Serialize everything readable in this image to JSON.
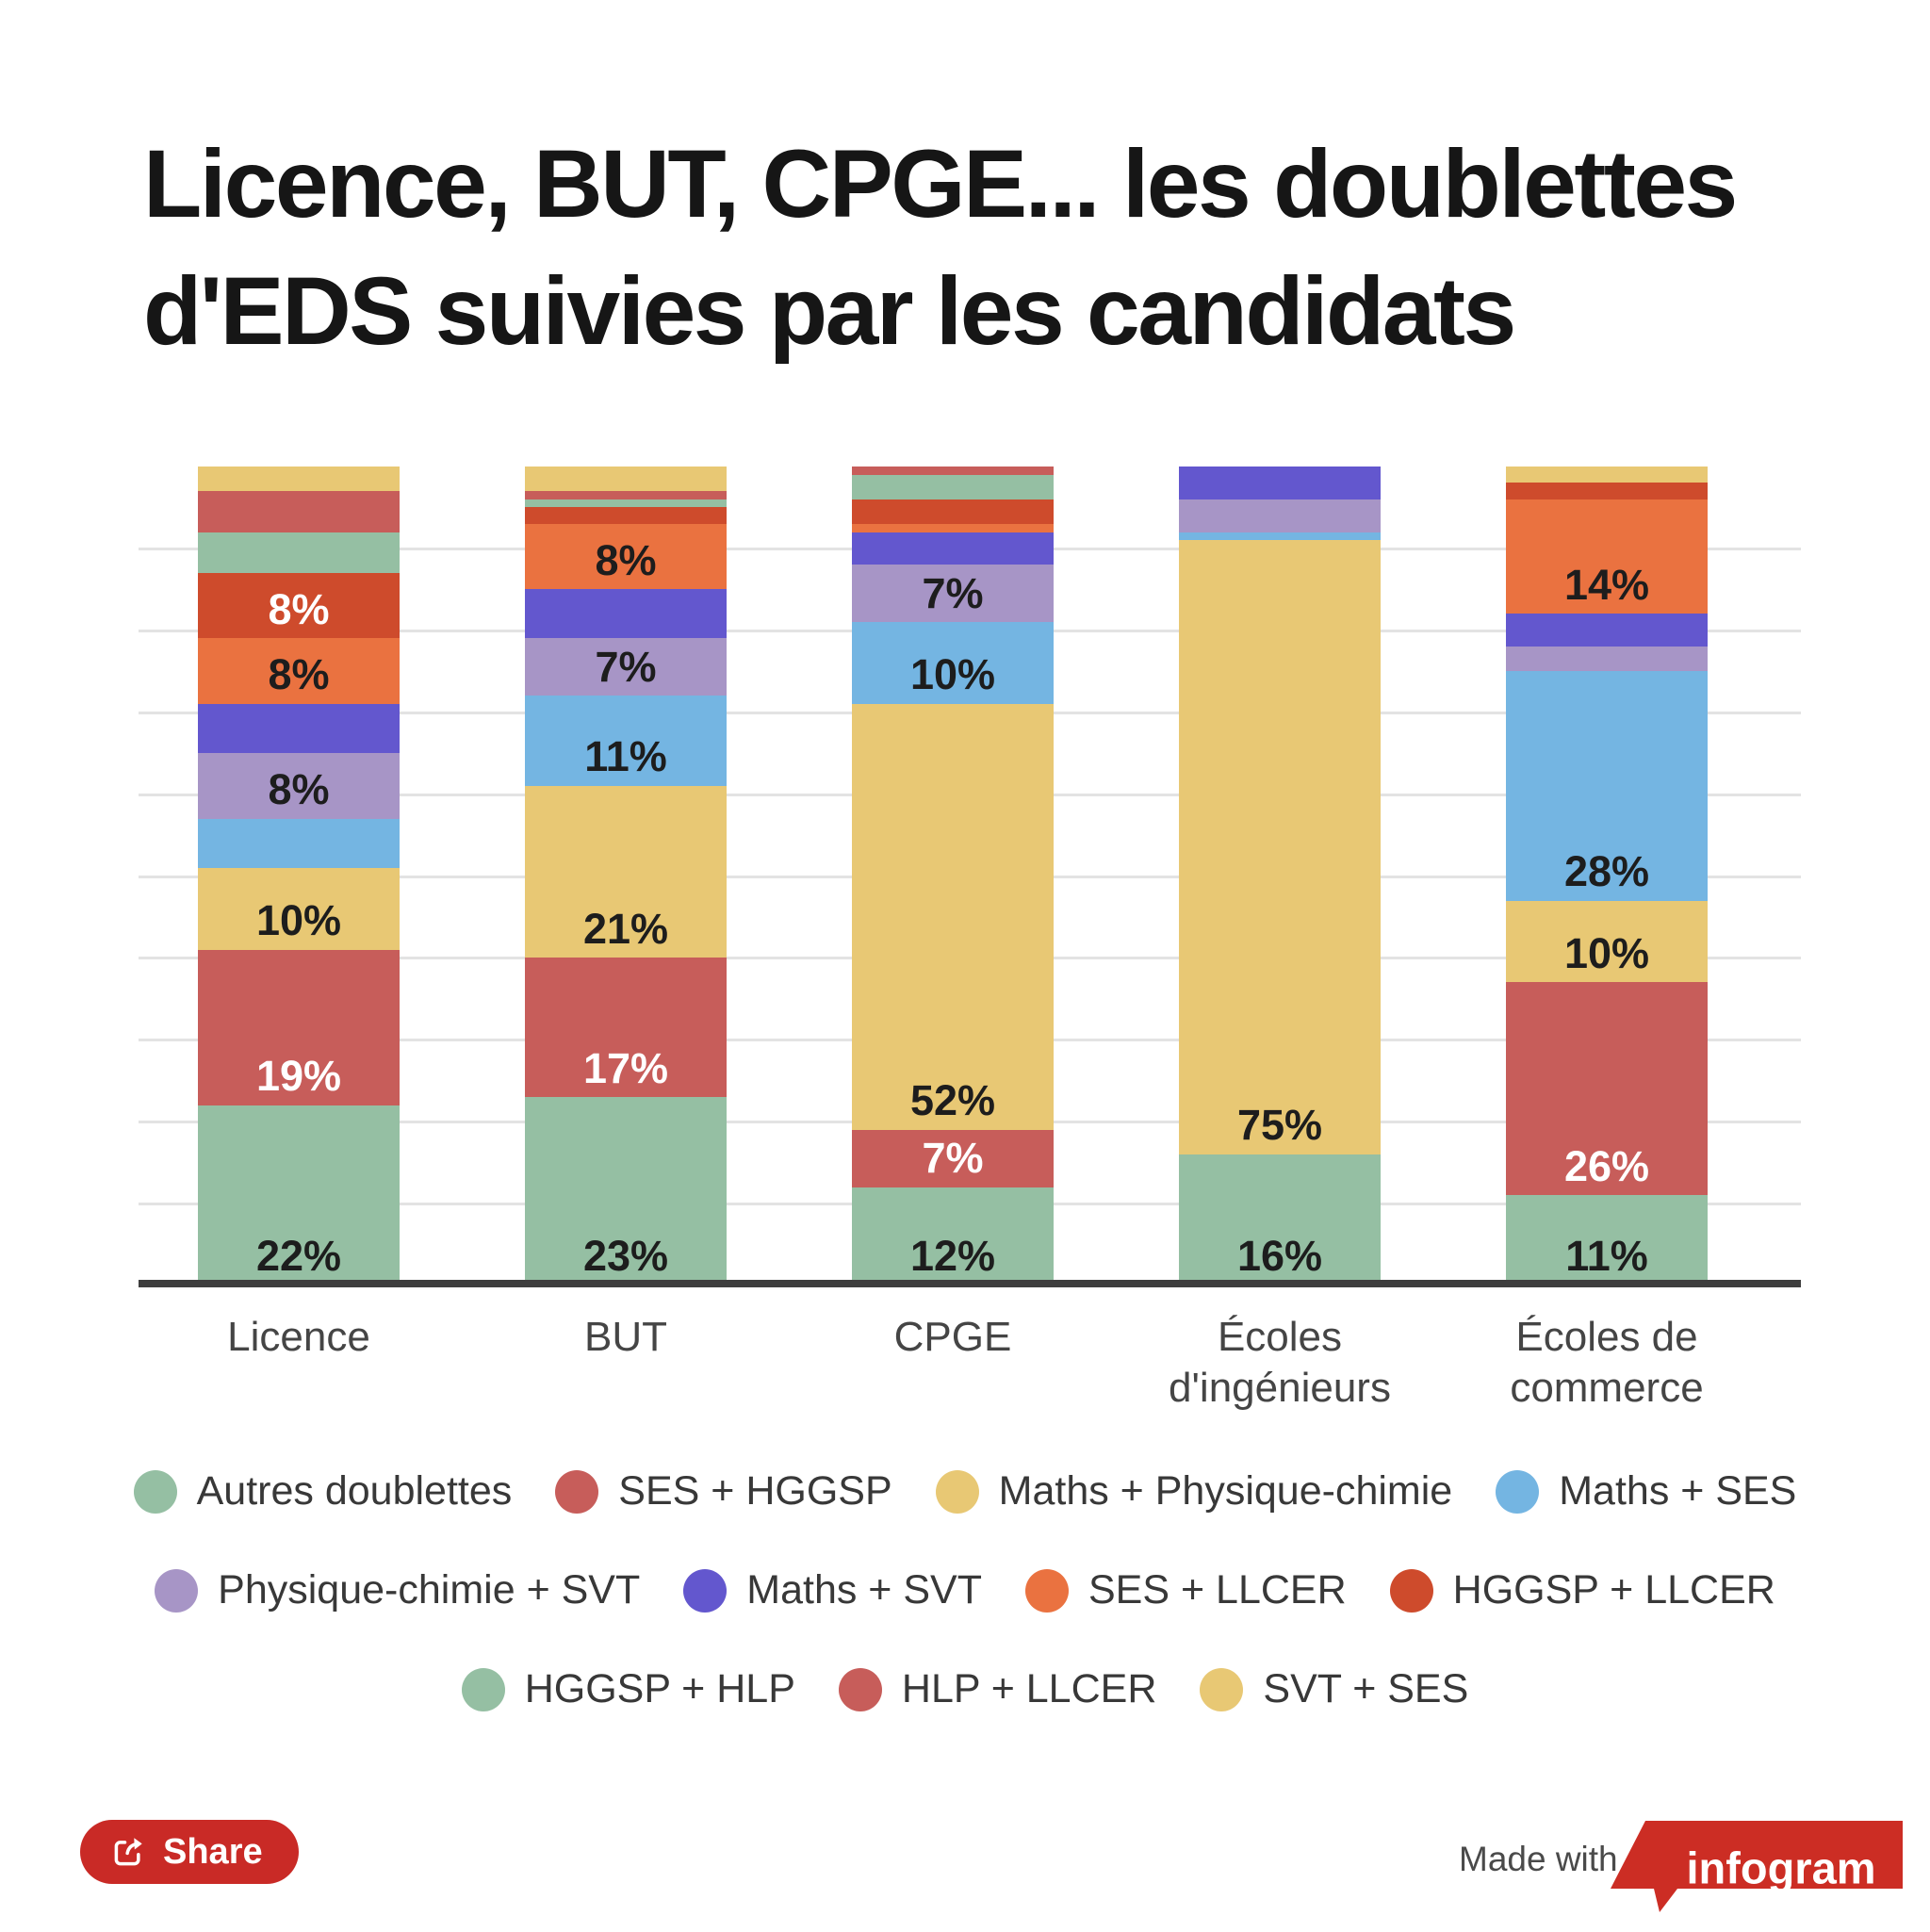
{
  "title": "Licence, BUT, CPGE... les doublettes\nd'EDS suivies par les candidats",
  "chart_data": {
    "type": "bar",
    "subtype": "stacked-100-percent",
    "title": "Licence, BUT, CPGE... les doublettes d'EDS suivies par les candidats",
    "ylim": [
      0,
      100
    ],
    "grid": "horizontal-10pct-steps",
    "value_suffix": "%",
    "label_min_value": 7,
    "categories": [
      "Licence",
      "BUT",
      "CPGE",
      "Écoles d'ingénieurs",
      "Écoles de commerce"
    ],
    "category_labels": [
      "Licence",
      "BUT",
      "CPGE",
      "Écoles\nd'ingénieurs",
      "Écoles de\ncommerce"
    ],
    "series": [
      {
        "name": "Autres doublettes",
        "color": "#95BFA3",
        "values": [
          22,
          23,
          12,
          16,
          11
        ]
      },
      {
        "name": "SES + HGGSP",
        "color": "#C75D5A",
        "values": [
          19,
          17,
          7,
          0,
          26
        ]
      },
      {
        "name": "Maths + Physique-chimie",
        "color": "#E8C874",
        "values": [
          10,
          21,
          52,
          75,
          10
        ]
      },
      {
        "name": "Maths + SES",
        "color": "#74B5E2",
        "values": [
          6,
          11,
          10,
          1,
          28
        ]
      },
      {
        "name": "Physique-chimie + SVT",
        "color": "#A795C6",
        "values": [
          8,
          7,
          7,
          4,
          3
        ]
      },
      {
        "name": "Maths + SVT",
        "color": "#6357CE",
        "values": [
          6,
          6,
          4,
          4,
          4
        ]
      },
      {
        "name": "SES + LLCER",
        "color": "#EA7240",
        "values": [
          8,
          8,
          1,
          0,
          14
        ]
      },
      {
        "name": "HGGSP + LLCER",
        "color": "#CE4B2C",
        "values": [
          8,
          2,
          3,
          0,
          2
        ]
      },
      {
        "name": "HGGSP + HLP",
        "color": "#95BFA3",
        "values": [
          5,
          1,
          3,
          0,
          0
        ]
      },
      {
        "name": "HLP + LLCER",
        "color": "#C75D5A",
        "values": [
          5,
          1,
          1,
          0,
          0
        ]
      },
      {
        "name": "SVT + SES",
        "color": "#E8C874",
        "values": [
          3,
          3,
          0,
          0,
          2
        ]
      }
    ],
    "white_label_colors": [
      "#C75D5A",
      "#CE4B2C"
    ],
    "label_color_dark": "#1d1d1d",
    "label_color_light": "#ffffff",
    "legend_rows": [
      [
        "Autres doublettes",
        "SES + HGGSP",
        "Maths + Physique-chimie",
        "Maths + SES"
      ],
      [
        "Physique-chimie + SVT",
        "Maths + SVT",
        "SES + LLCER",
        "HGGSP + LLCER"
      ],
      [
        "HGGSP + HLP",
        "HLP + LLCER",
        "SVT + SES"
      ]
    ]
  },
  "footer": {
    "share_label": "Share",
    "made_with": "Made with",
    "logo_text": "infogram"
  },
  "colors": {
    "accent_red": "#c92a26",
    "logo_red": "#cc2d24",
    "axis_line": "#3e3e3e",
    "gridline": "#e3e3e3",
    "title_text": "#161616",
    "category_text": "#454545",
    "legend_text": "#383838"
  }
}
